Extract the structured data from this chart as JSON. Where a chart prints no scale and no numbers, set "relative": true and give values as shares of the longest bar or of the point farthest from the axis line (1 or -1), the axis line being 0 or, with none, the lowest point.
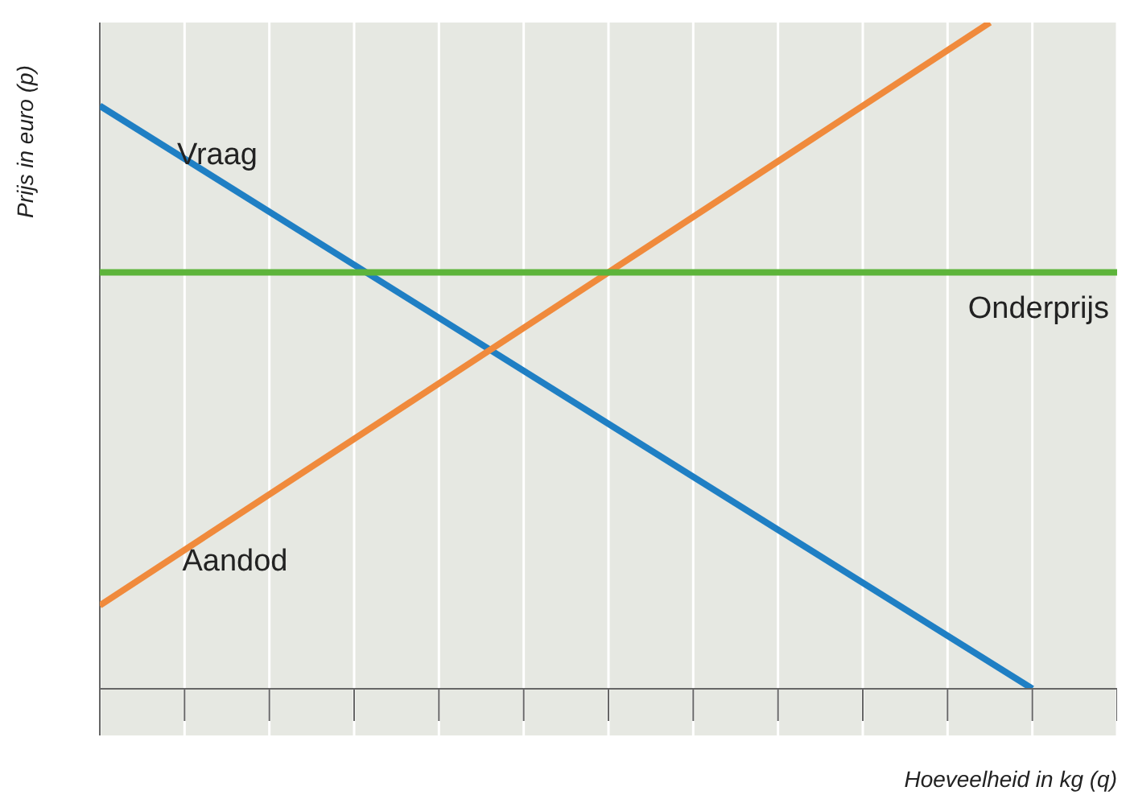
{
  "chart_data": {
    "type": "line",
    "relative": true,
    "xlabel": "Hoeveelheid in kg (q)",
    "ylabel": "Prijs in euro (p)",
    "categories": [
      null,
      null,
      null,
      null,
      null,
      null,
      null,
      null,
      null,
      null,
      null,
      null,
      null,
      null,
      null,
      null,
      null,
      null,
      null,
      null,
      null,
      null,
      null,
      null,
      null
    ],
    "grid": "x",
    "marker": "none",
    "line_style": "solid",
    "series": [
      {
        "name": "Vraag",
        "color": "#1f7fc4",
        "values": [
          0.875,
          null,
          null,
          null,
          null,
          null,
          null,
          null,
          null,
          null,
          null,
          null,
          null,
          null,
          null,
          null,
          null,
          null,
          null,
          null,
          null,
          null,
          0,
          null,
          null
        ]
      },
      {
        "name": "Aandod",
        "color": "#f08a3c",
        "values": [
          0.125,
          null,
          null,
          null,
          null,
          null,
          null,
          null,
          null,
          null,
          null,
          null,
          null,
          null,
          null,
          null,
          null,
          null,
          null,
          null,
          null,
          1,
          null,
          null,
          null
        ]
      },
      {
        "name": "Onderprijs",
        "color": "#5db43a",
        "values": [
          0.625,
          null,
          null,
          null,
          null,
          null,
          null,
          null,
          null,
          null,
          null,
          null,
          null,
          null,
          null,
          null,
          null,
          null,
          null,
          null,
          null,
          null,
          null,
          null,
          0.625
        ]
      }
    ]
  }
}
